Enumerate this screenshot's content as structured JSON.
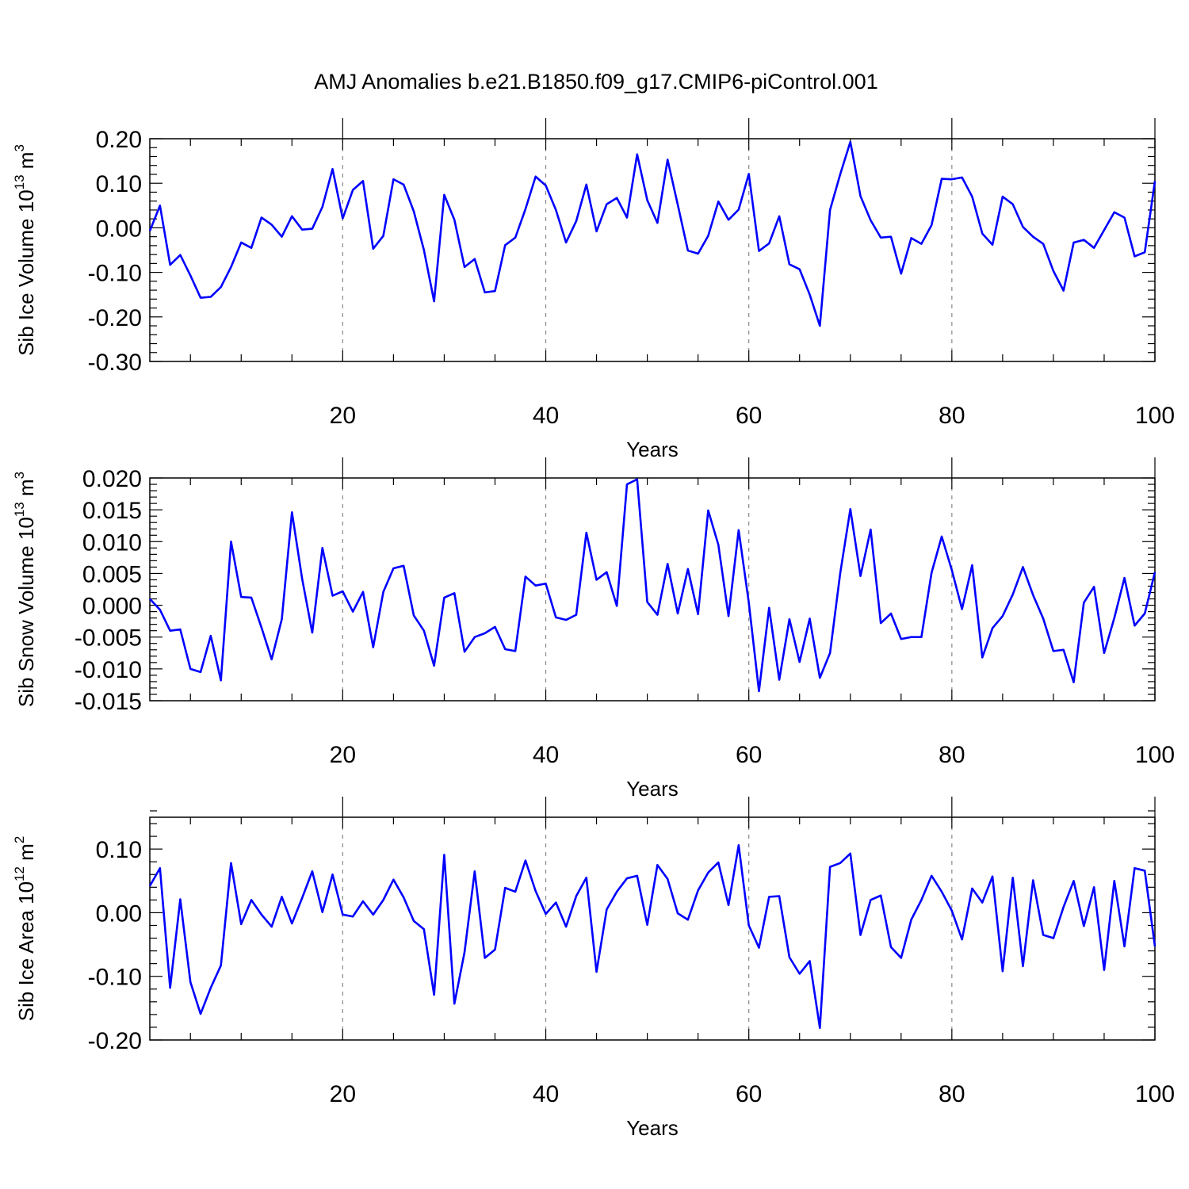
{
  "figure": {
    "title": "AMJ Anomalies b.e21.B1850.f09_g17.CMIP6-piControl.001"
  },
  "colors": {
    "line": "#0000ff",
    "axis": "#000000",
    "grid": "#888888"
  },
  "chart_data": [
    {
      "type": "line",
      "ylabel": "Sib Ice Volume 10",
      "ylabel_exp": "13",
      "ylabel_unit": " m",
      "ylabel_unit_exp": "3",
      "xlabel": "Years",
      "xlim": [
        1,
        100
      ],
      "ylim": [
        -0.3,
        0.2
      ],
      "xticks": [
        20,
        40,
        60,
        80,
        100
      ],
      "xtick_labels": [
        "20",
        "40",
        "60",
        "80",
        "100"
      ],
      "yticks": [
        -0.3,
        -0.2,
        -0.1,
        0.0,
        0.1,
        0.2
      ],
      "ytick_labels": [
        "-0.30",
        "-0.20",
        "-0.10",
        "0.00",
        "0.10",
        "0.20"
      ],
      "grid": "vertical-dashed",
      "x_start": 1,
      "values": [
        -0.007,
        0.05,
        -0.083,
        -0.061,
        -0.107,
        -0.157,
        -0.155,
        -0.133,
        -0.088,
        -0.033,
        -0.045,
        0.023,
        0.007,
        -0.02,
        0.026,
        -0.004,
        -0.002,
        0.047,
        0.132,
        0.021,
        0.085,
        0.105,
        -0.047,
        -0.018,
        0.109,
        0.097,
        0.037,
        -0.05,
        -0.165,
        0.074,
        0.018,
        -0.088,
        -0.07,
        -0.145,
        -0.142,
        -0.039,
        -0.022,
        0.042,
        0.115,
        0.095,
        0.04,
        -0.033,
        0.015,
        0.097,
        -0.008,
        0.053,
        0.067,
        0.023,
        0.165,
        0.062,
        0.011,
        0.153,
        0.052,
        -0.051,
        -0.058,
        -0.018,
        0.059,
        0.018,
        0.041,
        0.121,
        -0.052,
        -0.035,
        0.026,
        -0.082,
        -0.093,
        -0.15,
        -0.22,
        0.04,
        0.12,
        0.193,
        0.071,
        0.017,
        -0.022,
        -0.02,
        -0.103,
        -0.023,
        -0.036,
        0.006,
        0.11,
        0.109,
        0.113,
        0.07,
        -0.013,
        -0.038,
        0.07,
        0.053,
        0.002,
        -0.02,
        -0.036,
        -0.097,
        -0.141,
        -0.033,
        -0.027,
        -0.045,
        -0.005,
        0.035,
        0.023,
        -0.064,
        -0.055,
        0.105
      ]
    },
    {
      "type": "line",
      "ylabel": "Sib Snow Volume 10",
      "ylabel_exp": "13",
      "ylabel_unit": " m",
      "ylabel_unit_exp": "3",
      "xlabel": "Years",
      "xlim": [
        1,
        100
      ],
      "ylim": [
        -0.015,
        0.02
      ],
      "xticks": [
        20,
        40,
        60,
        80,
        100
      ],
      "xtick_labels": [
        "20",
        "40",
        "60",
        "80",
        "100"
      ],
      "yticks": [
        -0.015,
        -0.01,
        -0.005,
        0.0,
        0.005,
        0.01,
        0.015,
        0.02
      ],
      "ytick_labels": [
        "-0.015",
        "-0.010",
        "-0.005",
        "0.000",
        "0.005",
        "0.010",
        "0.015",
        "0.020"
      ],
      "grid": "vertical-dashed",
      "x_start": 1,
      "values": [
        0.001,
        -0.0007,
        -0.004,
        -0.0038,
        -0.01,
        -0.0105,
        -0.0048,
        -0.0118,
        0.01,
        0.0013,
        0.0012,
        -0.0035,
        -0.0085,
        -0.0022,
        0.0146,
        0.0042,
        -0.0043,
        0.009,
        0.0015,
        0.0022,
        -0.001,
        0.0021,
        -0.0066,
        0.0021,
        0.0058,
        0.0062,
        -0.0016,
        -0.004,
        -0.0095,
        0.0012,
        0.0019,
        -0.0073,
        -0.005,
        -0.0044,
        -0.0034,
        -0.0069,
        -0.0072,
        0.0045,
        0.0031,
        0.0034,
        -0.0019,
        -0.0023,
        -0.0015,
        0.0114,
        0.004,
        0.0052,
        -0.0001,
        0.019,
        0.0198,
        0.0005,
        -0.0015,
        0.0065,
        -0.0013,
        0.0057,
        -0.0014,
        0.0149,
        0.0095,
        -0.0017,
        0.0118,
        0.0004,
        -0.0135,
        -0.0004,
        -0.0117,
        -0.0022,
        -0.0089,
        -0.0021,
        -0.0114,
        -0.0075,
        0.005,
        0.0151,
        0.0046,
        0.0119,
        -0.0028,
        -0.0013,
        -0.0053,
        -0.005,
        -0.005,
        0.0051,
        0.0108,
        0.0055,
        -0.0006,
        0.0063,
        -0.0082,
        -0.0036,
        -0.0017,
        0.0017,
        0.006,
        0.0016,
        -0.0021,
        -0.0072,
        -0.007,
        -0.0121,
        0.0004,
        0.0029,
        -0.0075,
        -0.002,
        0.0043,
        -0.0032,
        -0.0013,
        0.0052
      ]
    },
    {
      "type": "line",
      "ylabel": "Sib Ice Area 10",
      "ylabel_exp": "12",
      "ylabel_unit": " m",
      "ylabel_unit_exp": "2",
      "xlabel": "Years",
      "xlim": [
        1,
        100
      ],
      "ylim": [
        -0.2,
        0.15
      ],
      "xticks": [
        20,
        40,
        60,
        80,
        100
      ],
      "xtick_labels": [
        "20",
        "40",
        "60",
        "80",
        "100"
      ],
      "yticks": [
        -0.2,
        -0.1,
        0.0,
        0.1
      ],
      "ytick_labels": [
        "-0.20",
        "-0.10",
        "0.00",
        "0.10"
      ],
      "grid": "vertical-dashed",
      "x_start": 1,
      "values": [
        0.042,
        0.07,
        -0.118,
        0.021,
        -0.109,
        -0.159,
        -0.118,
        -0.083,
        0.078,
        -0.018,
        0.02,
        -0.003,
        -0.022,
        0.025,
        -0.017,
        0.023,
        0.065,
        0.001,
        0.06,
        -0.003,
        -0.006,
        0.018,
        -0.003,
        0.02,
        0.052,
        0.024,
        -0.013,
        -0.026,
        -0.129,
        0.091,
        -0.143,
        -0.062,
        0.065,
        -0.071,
        -0.058,
        0.039,
        0.033,
        0.082,
        0.034,
        -0.002,
        0.016,
        -0.022,
        0.026,
        0.055,
        -0.093,
        0.005,
        0.033,
        0.054,
        0.058,
        -0.019,
        0.075,
        0.053,
        -0.001,
        -0.011,
        0.035,
        0.063,
        0.079,
        0.012,
        0.106,
        -0.02,
        -0.055,
        0.025,
        0.026,
        -0.07,
        -0.096,
        -0.076,
        -0.181,
        0.072,
        0.078,
        0.093,
        -0.035,
        0.02,
        0.027,
        -0.054,
        -0.071,
        -0.011,
        0.02,
        0.058,
        0.033,
        0.003,
        -0.042,
        0.038,
        0.016,
        0.057,
        -0.092,
        0.055,
        -0.084,
        0.051,
        -0.035,
        -0.04,
        0.009,
        0.05,
        -0.021,
        0.04,
        -0.09,
        0.05,
        -0.053,
        0.07,
        0.066,
        -0.053
      ]
    }
  ]
}
